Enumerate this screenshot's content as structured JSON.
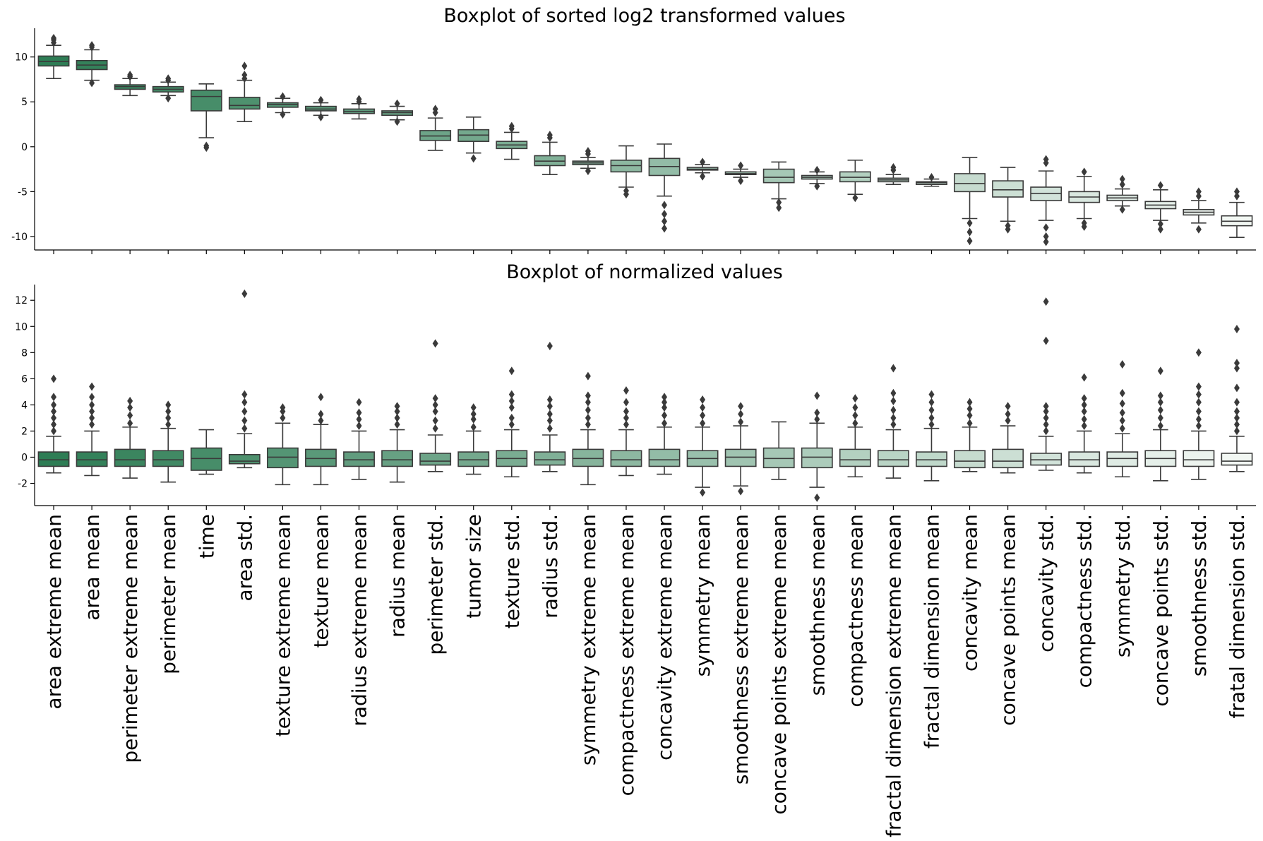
{
  "chart_data": {
    "type": "boxplot",
    "categories": [
      "area extreme mean",
      "area mean",
      "perimeter extreme mean",
      "perimeter mean",
      "time",
      "area std.",
      "texture extreme mean",
      "texture mean",
      "radius extreme mean",
      "radius mean",
      "perimeter std.",
      "tumor size",
      "texture std.",
      "radius std.",
      "symmetry extreme mean",
      "compactness extreme mean",
      "concavity extreme mean",
      "symmetry mean",
      "smoothness extreme mean",
      "concave points extreme mean",
      "smoothness mean",
      "compactness mean",
      "fractal dimension extreme mean",
      "fractal dimension mean",
      "concavity mean",
      "concave points mean",
      "concavity std.",
      "compactness std.",
      "symmetry std.",
      "concave points std.",
      "smoothness std.",
      "fratal dimension std."
    ],
    "colors": {
      "dark": "#2e7d55",
      "light": "#f2f7f3",
      "line": "#3a3a3a"
    },
    "panels": [
      {
        "title": "Boxplot of sorted log2 transformed values",
        "ylim": [
          -11.5,
          13.2
        ],
        "yticks": [
          -10,
          -5,
          0,
          5,
          10
        ],
        "stats": [
          [
            7.6,
            9.0,
            9.5,
            10.1,
            11.3,
            [
              11.6,
              11.9,
              12.1
            ]
          ],
          [
            7.4,
            8.6,
            9.1,
            9.6,
            10.8,
            [
              7.1,
              11.1,
              11.3
            ]
          ],
          [
            5.7,
            6.4,
            6.7,
            6.9,
            7.6,
            [
              7.8,
              8.0
            ]
          ],
          [
            5.7,
            6.1,
            6.4,
            6.7,
            7.2,
            [
              5.4,
              7.4,
              7.6
            ]
          ],
          [
            1.0,
            4.0,
            5.6,
            6.3,
            7.0,
            [
              0.1,
              -0.1
            ]
          ],
          [
            2.8,
            4.2,
            4.6,
            5.5,
            7.4,
            [
              7.6,
              8.0,
              9.0
            ]
          ],
          [
            3.8,
            4.4,
            4.7,
            4.9,
            5.4,
            [
              3.6,
              5.6
            ]
          ],
          [
            3.5,
            4.0,
            4.2,
            4.5,
            4.9,
            [
              3.3,
              5.2
            ]
          ],
          [
            3.1,
            3.7,
            3.9,
            4.2,
            4.8,
            [
              5.0,
              5.3
            ]
          ],
          [
            3.0,
            3.5,
            3.8,
            4.0,
            4.5,
            [
              2.8,
              4.8
            ]
          ],
          [
            -0.4,
            0.7,
            1.2,
            1.8,
            3.2,
            [
              3.8,
              4.2
            ]
          ],
          [
            -0.7,
            0.6,
            1.3,
            1.9,
            3.3,
            [
              -1.3
            ]
          ],
          [
            -1.4,
            -0.2,
            0.2,
            0.6,
            1.6,
            [
              2.0,
              2.3
            ]
          ],
          [
            -3.1,
            -2.1,
            -1.6,
            -1.0,
            0.5,
            [
              1.0,
              1.3
            ]
          ],
          [
            -2.4,
            -2.0,
            -1.8,
            -1.6,
            -1.2,
            [
              -2.7,
              -0.8,
              -0.5
            ]
          ],
          [
            -4.5,
            -2.8,
            -2.1,
            -1.5,
            0.1,
            [
              -4.9,
              -5.3
            ]
          ],
          [
            -5.5,
            -3.2,
            -2.2,
            -1.3,
            0.3,
            [
              -6.5,
              -7.5,
              -8.3,
              -9.1
            ]
          ],
          [
            -2.9,
            -2.6,
            -2.5,
            -2.3,
            -2.0,
            [
              -3.3,
              -1.7
            ]
          ],
          [
            -3.4,
            -3.1,
            -3.0,
            -2.8,
            -2.5,
            [
              -3.8,
              -2.1
            ]
          ],
          [
            -5.8,
            -4.0,
            -3.4,
            -2.5,
            -1.7,
            [
              -6.2,
              -6.8
            ]
          ],
          [
            -4.1,
            -3.6,
            -3.4,
            -3.2,
            -2.8,
            [
              -4.4,
              -2.6
            ]
          ],
          [
            -5.3,
            -3.9,
            -3.4,
            -2.8,
            -1.5,
            [
              -5.7
            ]
          ],
          [
            -4.2,
            -3.9,
            -3.7,
            -3.5,
            -3.1,
            [
              -2.6,
              -2.3
            ]
          ],
          [
            -4.4,
            -4.2,
            -4.0,
            -3.9,
            -3.6,
            [
              -3.4
            ]
          ],
          [
            -8.0,
            -5.0,
            -4.1,
            -3.0,
            -1.2,
            [
              -8.5,
              -9.5,
              -10.5
            ]
          ],
          [
            -8.3,
            -5.6,
            -4.8,
            -3.8,
            -2.3,
            [
              -8.8,
              -9.2
            ]
          ],
          [
            -8.2,
            -6.0,
            -5.2,
            -4.5,
            -2.7,
            [
              -9.0,
              -10.0,
              -10.6,
              -1.8,
              -1.4
            ]
          ],
          [
            -8.0,
            -6.2,
            -5.6,
            -5.0,
            -3.3,
            [
              -8.5,
              -8.9,
              -2.8
            ]
          ],
          [
            -6.6,
            -6.0,
            -5.7,
            -5.4,
            -4.7,
            [
              -7.0,
              -4.2,
              -3.6
            ]
          ],
          [
            -8.2,
            -6.9,
            -6.5,
            -6.1,
            -4.8,
            [
              -8.6,
              -9.2,
              -4.3
            ]
          ],
          [
            -8.5,
            -7.6,
            -7.3,
            -7.0,
            -6.0,
            [
              -9.2,
              -5.5,
              -5.0
            ]
          ],
          [
            -10.1,
            -8.8,
            -8.3,
            -7.7,
            -6.2,
            [
              -5.5,
              -5.0
            ]
          ]
        ]
      },
      {
        "title": "Boxplot of normalized values",
        "ylim": [
          -3.7,
          13.2
        ],
        "yticks": [
          -2,
          0,
          2,
          4,
          6,
          8,
          10,
          12
        ],
        "stats": [
          [
            -1.2,
            -0.7,
            -0.2,
            0.4,
            1.6,
            [
              2.0,
              2.5,
              3.0,
              3.5,
              4.0,
              4.6,
              6.0
            ]
          ],
          [
            -1.4,
            -0.7,
            -0.2,
            0.4,
            2.0,
            [
              2.5,
              3.0,
              3.5,
              4.0,
              4.6,
              5.4
            ]
          ],
          [
            -1.6,
            -0.7,
            -0.2,
            0.6,
            2.3,
            [
              2.6,
              3.2,
              3.8,
              4.3
            ]
          ],
          [
            -1.9,
            -0.7,
            -0.2,
            0.5,
            2.2,
            [
              2.5,
              3.0,
              3.5,
              4.0
            ]
          ],
          [
            -1.3,
            -1.0,
            -0.1,
            0.7,
            2.1,
            []
          ],
          [
            -0.8,
            -0.5,
            -0.3,
            0.2,
            1.8,
            [
              2.2,
              2.8,
              3.5,
              4.2,
              4.8,
              12.5
            ]
          ],
          [
            -2.1,
            -0.8,
            0.0,
            0.7,
            2.6,
            [
              3.0,
              3.5,
              3.8
            ]
          ],
          [
            -2.1,
            -0.7,
            -0.1,
            0.6,
            2.5,
            [
              2.8,
              3.3,
              4.6
            ]
          ],
          [
            -1.7,
            -0.7,
            -0.2,
            0.4,
            2.0,
            [
              2.4,
              2.9,
              3.4,
              4.2
            ]
          ],
          [
            -1.9,
            -0.7,
            -0.2,
            0.5,
            2.1,
            [
              2.5,
              3.0,
              3.5,
              3.9
            ]
          ],
          [
            -1.1,
            -0.6,
            -0.3,
            0.3,
            1.7,
            [
              2.2,
              2.8,
              3.5,
              4.0,
              4.5,
              8.7
            ]
          ],
          [
            -1.3,
            -0.7,
            -0.2,
            0.4,
            2.0,
            [
              2.3,
              2.9,
              3.3,
              3.8
            ]
          ],
          [
            -1.5,
            -0.7,
            -0.1,
            0.5,
            2.1,
            [
              2.5,
              3.0,
              3.8,
              4.3,
              4.8,
              6.6
            ]
          ],
          [
            -1.1,
            -0.6,
            -0.2,
            0.4,
            1.7,
            [
              2.2,
              2.8,
              3.3,
              3.9,
              4.4,
              8.5
            ]
          ],
          [
            -2.1,
            -0.7,
            -0.1,
            0.6,
            2.1,
            [
              2.5,
              3.0,
              3.6,
              4.2,
              4.7,
              6.2
            ]
          ],
          [
            -1.4,
            -0.7,
            -0.2,
            0.5,
            2.1,
            [
              2.5,
              3.0,
              3.5,
              4.2,
              5.1
            ]
          ],
          [
            -1.3,
            -0.7,
            -0.2,
            0.6,
            2.3,
            [
              2.6,
              3.2,
              3.8,
              4.2,
              4.6
            ]
          ],
          [
            -2.3,
            -0.7,
            -0.1,
            0.5,
            2.3,
            [
              2.6,
              3.2,
              3.8,
              4.4,
              -2.7
            ]
          ],
          [
            -2.2,
            -0.7,
            0.0,
            0.6,
            2.4,
            [
              2.7,
              3.3,
              3.9,
              -2.6
            ]
          ],
          [
            -1.7,
            -0.8,
            -0.1,
            0.7,
            2.7,
            []
          ],
          [
            -2.3,
            -0.8,
            0.0,
            0.7,
            2.6,
            [
              2.9,
              3.4,
              4.7,
              -3.1
            ]
          ],
          [
            -1.5,
            -0.7,
            -0.2,
            0.6,
            2.3,
            [
              2.6,
              3.2,
              3.8,
              4.5
            ]
          ],
          [
            -1.6,
            -0.7,
            -0.2,
            0.5,
            2.1,
            [
              2.5,
              3.0,
              3.6,
              4.3,
              4.9,
              6.8
            ]
          ],
          [
            -1.8,
            -0.7,
            -0.2,
            0.4,
            2.2,
            [
              2.5,
              3.0,
              3.6,
              4.2,
              4.8
            ]
          ],
          [
            -1.1,
            -0.8,
            -0.3,
            0.5,
            2.3,
            [
              2.6,
              3.2,
              3.7,
              4.2
            ]
          ],
          [
            -1.2,
            -0.8,
            -0.3,
            0.6,
            2.4,
            [
              2.8,
              3.3,
              3.9
            ]
          ],
          [
            -1.0,
            -0.6,
            -0.2,
            0.3,
            1.6,
            [
              2.0,
              2.5,
              3.0,
              3.5,
              3.9,
              8.9,
              11.9
            ]
          ],
          [
            -1.2,
            -0.7,
            -0.2,
            0.4,
            2.0,
            [
              2.4,
              2.9,
              3.5,
              4.0,
              4.5,
              6.1
            ]
          ],
          [
            -1.5,
            -0.7,
            -0.1,
            0.4,
            1.8,
            [
              2.2,
              2.8,
              3.4,
              4.1,
              4.9,
              7.1
            ]
          ],
          [
            -1.8,
            -0.7,
            -0.1,
            0.5,
            2.1,
            [
              2.4,
              3.0,
              3.6,
              4.2,
              4.7,
              6.6
            ]
          ],
          [
            -1.7,
            -0.7,
            -0.2,
            0.5,
            2.0,
            [
              2.4,
              2.9,
              3.5,
              4.2,
              4.8,
              5.4,
              8.0
            ]
          ],
          [
            -1.1,
            -0.6,
            -0.3,
            0.3,
            1.6,
            [
              2.0,
              2.5,
              3.0,
              3.5,
              4.2,
              5.3,
              6.8,
              7.2,
              9.8
            ]
          ]
        ]
      }
    ]
  }
}
